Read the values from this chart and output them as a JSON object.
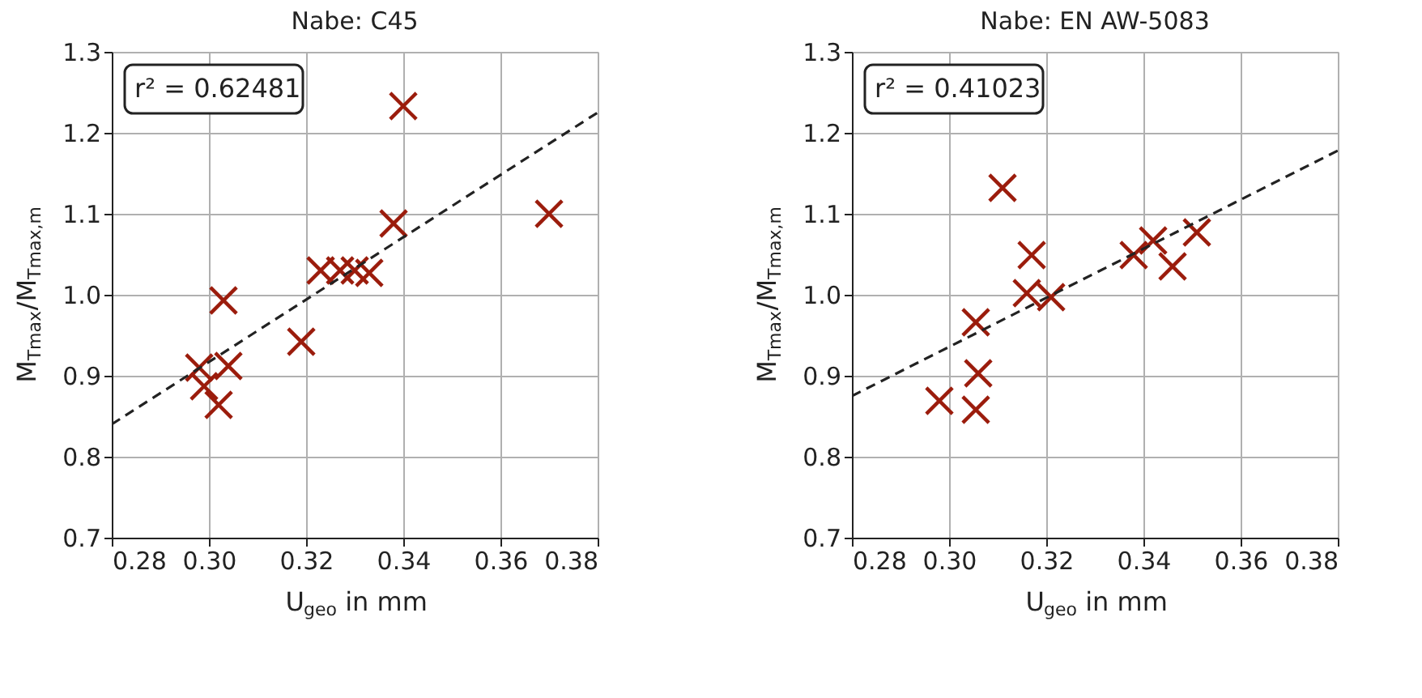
{
  "chart_data": [
    {
      "type": "scatter",
      "title": "Nabe: C45",
      "xlabel": "U$_{geo}$ in mm",
      "ylabel": "M$_{Tmax}$/M$_{Tmax,m}$",
      "xlim": [
        0.28,
        0.38
      ],
      "xticks": [
        0.28,
        {
          "value": 0.3,
          "label": "0.30"
        },
        0.32,
        0.34,
        0.36,
        0.38
      ],
      "ylim": [
        0.7,
        1.3
      ],
      "yticks": [
        0.7,
        0.8,
        0.9,
        {
          "value": 1.0,
          "label": "1.0"
        },
        1.1,
        1.2,
        1.3
      ],
      "grid": true,
      "annotations": [
        "r² = 0.62481"
      ],
      "series": [
        {
          "type": "scatter",
          "marker": "cross",
          "color": "#9b1c0c",
          "x": [
            0.34,
            0.37,
            0.338,
            0.323,
            0.327,
            0.33,
            0.333,
            0.303,
            0.319,
            0.298,
            0.304,
            0.299,
            0.302
          ],
          "values": [
            1.233,
            1.1,
            1.088,
            1.03,
            1.03,
            1.03,
            1.027,
            0.993,
            0.942,
            0.91,
            0.912,
            0.887,
            0.864
          ]
        },
        {
          "type": "line",
          "line_style": "dashed",
          "color": "#222222",
          "x": [
            0.28,
            0.38
          ],
          "values": [
            0.84,
            1.225
          ]
        }
      ]
    },
    {
      "type": "scatter",
      "title": "Nabe: EN AW-5083",
      "xlabel": "U$_{geo}$ in mm",
      "ylabel": "M$_{Tmax}$/M$_{Tmax,m}$",
      "xlim": [
        0.28,
        0.38
      ],
      "xticks": [
        0.28,
        {
          "value": 0.3,
          "label": "0.30"
        },
        0.32,
        0.34,
        0.36,
        0.38
      ],
      "ylim": [
        0.7,
        1.3
      ],
      "yticks": [
        0.7,
        0.8,
        0.9,
        {
          "value": 1.0,
          "label": "1.0"
        },
        1.1,
        1.2,
        1.3
      ],
      "grid": true,
      "annotations": [
        "r² = 0.41023"
      ],
      "series": [
        {
          "type": "scatter",
          "marker": "cross",
          "color": "#9b1c0c",
          "x": [
            0.311,
            0.317,
            0.316,
            0.321,
            0.3055,
            0.306,
            0.3055,
            0.298,
            0.338,
            0.342,
            0.346,
            0.351
          ],
          "values": [
            1.132,
            1.049,
            1.002,
            0.997,
            0.966,
            0.903,
            0.858,
            0.869,
            1.049,
            1.067,
            1.035,
            1.077
          ]
        },
        {
          "type": "line",
          "line_style": "dashed",
          "color": "#222222",
          "x": [
            0.28,
            0.38
          ],
          "values": [
            0.875,
            1.178
          ]
        }
      ]
    }
  ]
}
